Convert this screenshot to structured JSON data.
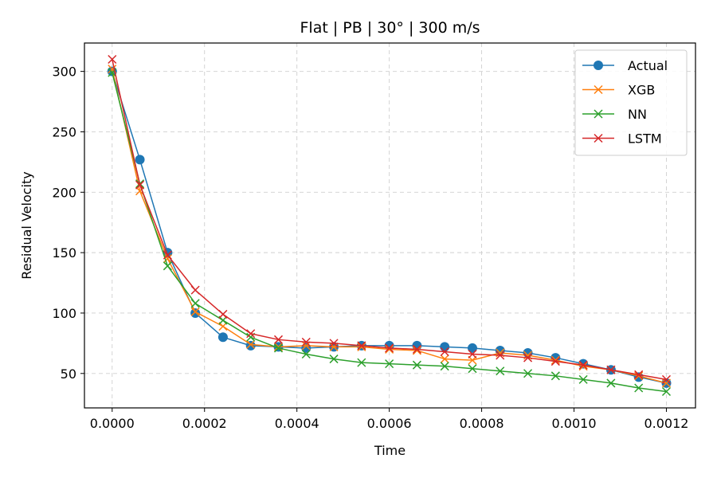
{
  "chart_data": {
    "type": "line",
    "title": "Flat | PB | 30° | 300 m/s",
    "xlabel": "Time",
    "ylabel": "Residual Velocity",
    "xlim": [
      -6e-05,
      0.001263
    ],
    "ylim": [
      21.5,
      323.5
    ],
    "xticks": [
      0.0,
      0.0002,
      0.0004,
      0.0006,
      0.0008,
      0.001,
      0.0012
    ],
    "xtick_labels": [
      "0.0000",
      "0.0002",
      "0.0004",
      "0.0006",
      "0.0008",
      "0.0010",
      "0.0012"
    ],
    "yticks": [
      50,
      100,
      150,
      200,
      250,
      300
    ],
    "ytick_labels": [
      "50",
      "100",
      "150",
      "200",
      "250",
      "300"
    ],
    "grid": true,
    "legend_position": "top-right",
    "x": [
      0.0,
      6e-05,
      0.00012,
      0.00018,
      0.00024,
      0.0003,
      0.00036,
      0.00042,
      0.00048,
      0.00054,
      0.0006,
      0.00066,
      0.00072,
      0.00078,
      0.00084,
      0.0009,
      0.00096,
      0.00102,
      0.00108,
      0.00114,
      0.0012
    ],
    "series": [
      {
        "name": "Actual",
        "color": "#1f77b4",
        "marker": "circle",
        "values": [
          300,
          227,
          150,
          100,
          80,
          73,
          72,
          71,
          72,
          73,
          73,
          73,
          72,
          71,
          69,
          67,
          63,
          58,
          53,
          47,
          42
        ]
      },
      {
        "name": "XGB",
        "color": "#ff7f0e",
        "marker": "x",
        "values": [
          302,
          201,
          145,
          101,
          89,
          74,
          72,
          73,
          72,
          72,
          70,
          69,
          62,
          61,
          67,
          65,
          61,
          56,
          53,
          48,
          42
        ]
      },
      {
        "name": "NN",
        "color": "#2ca02c",
        "marker": "x",
        "values": [
          299,
          207,
          139,
          108,
          94,
          80,
          71,
          66,
          62,
          59,
          58,
          57,
          56,
          54,
          52,
          50,
          48,
          45,
          42,
          38,
          35
        ]
      },
      {
        "name": "LSTM",
        "color": "#d62728",
        "marker": "x",
        "values": [
          310,
          206,
          148,
          119,
          99,
          83,
          78,
          76,
          75,
          73,
          71,
          70,
          68,
          66,
          65,
          63,
          60,
          57,
          53,
          49,
          45
        ]
      }
    ]
  }
}
